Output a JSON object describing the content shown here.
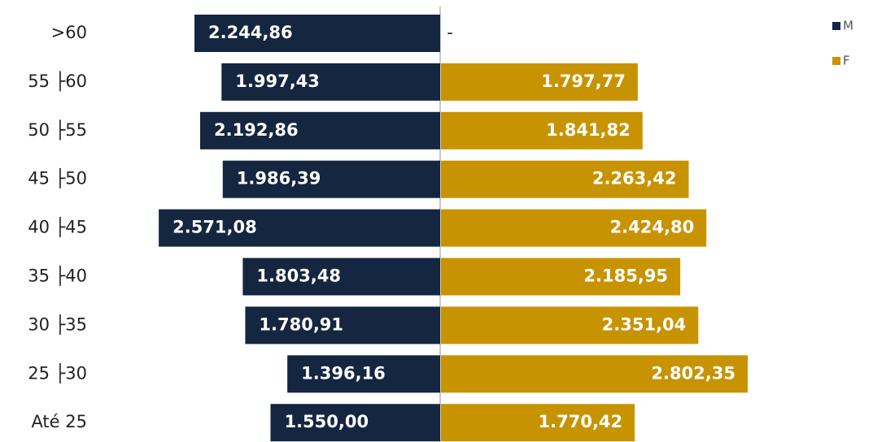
{
  "chart_data": {
    "type": "butterfly",
    "categories": [
      ">60",
      "55 ├60",
      "50 ├55",
      "45 ├50",
      "40 ├45",
      "35 ├40",
      "30 ├35",
      "25 ├30",
      "Até 25"
    ],
    "series": [
      {
        "name": "M",
        "color": "#142640",
        "values": [
          2244.86,
          1997.43,
          2192.86,
          1986.39,
          2571.08,
          1803.48,
          1780.91,
          1396.16,
          1550.0
        ],
        "value_labels": [
          "2.244,86",
          "1.997,43",
          "2.192,86",
          "1.986,39",
          "2.571,08",
          "1.803,48",
          "1.780,91",
          "1.396,16",
          "1.550,00"
        ]
      },
      {
        "name": "F",
        "color": "#c89300",
        "values": [
          null,
          1797.77,
          1841.82,
          2263.42,
          2424.8,
          2185.95,
          2351.04,
          2802.35,
          1770.42
        ],
        "value_labels": [
          "-",
          "1.797,77",
          "1.841,82",
          "2.263,42",
          "2.424,80",
          "2.185,95",
          "2.351,04",
          "2.802,35",
          "1.770,42"
        ]
      }
    ],
    "legend": "top-right"
  }
}
